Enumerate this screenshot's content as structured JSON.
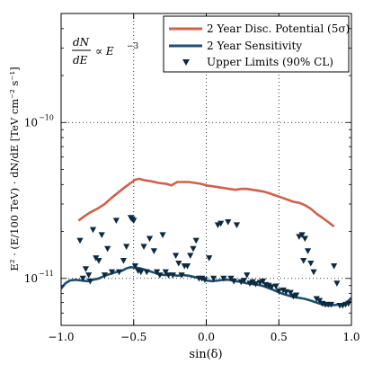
{
  "chart_data": {
    "type": "line",
    "title": "",
    "annotation_formula": {
      "lhs_num": "dN",
      "lhs_den": "dE",
      "rhs": "∝ E",
      "exponent": "−3"
    },
    "xlabel": "sin(δ)",
    "ylabel": "E² · (E/100 TeV) · dN/dE  [TeV cm⁻² s⁻¹]",
    "xlim": [
      -1.0,
      1.0
    ],
    "ylim": [
      5e-12,
      5e-10
    ],
    "yscale": "log",
    "grid": true,
    "grid_style": "dotted",
    "legend_placement": "top-right",
    "x_ticks": [
      {
        "value": -1.0,
        "label": "−1.0"
      },
      {
        "value": -0.5,
        "label": "−0.5"
      },
      {
        "value": 0.0,
        "label": "0.0"
      },
      {
        "value": 0.5,
        "label": "0.5"
      },
      {
        "value": 1.0,
        "label": "1.0"
      }
    ],
    "y_ticks": [
      {
        "value": 1e-11,
        "base": "10",
        "exp": "−11"
      },
      {
        "value": 1e-10,
        "base": "10",
        "exp": "−10"
      }
    ],
    "series": [
      {
        "name": "2 Year Disc. Potential (5σ)",
        "kind": "line",
        "color": "#d0604c",
        "x": [
          -0.88,
          -0.84,
          -0.8,
          -0.75,
          -0.7,
          -0.65,
          -0.6,
          -0.56,
          -0.52,
          -0.49,
          -0.46,
          -0.42,
          -0.38,
          -0.33,
          -0.28,
          -0.24,
          -0.2,
          -0.16,
          -0.12,
          -0.08,
          -0.04,
          0.0,
          0.04,
          0.08,
          0.12,
          0.16,
          0.2,
          0.24,
          0.28,
          0.32,
          0.36,
          0.4,
          0.44,
          0.48,
          0.52,
          0.56,
          0.6,
          0.64,
          0.68,
          0.72,
          0.76,
          0.8,
          0.84,
          0.88
        ],
        "values": [
          2.35e-11,
          2.5e-11,
          2.65e-11,
          2.8e-11,
          3e-11,
          3.3e-11,
          3.6e-11,
          3.85e-11,
          4.1e-11,
          4.3e-11,
          4.35e-11,
          4.25e-11,
          4.2e-11,
          4.1e-11,
          4.05e-11,
          3.95e-11,
          4.15e-11,
          4.15e-11,
          4.15e-11,
          4.1e-11,
          4.05e-11,
          3.95e-11,
          3.9e-11,
          3.85e-11,
          3.8e-11,
          3.75e-11,
          3.7e-11,
          3.75e-11,
          3.75e-11,
          3.7e-11,
          3.65e-11,
          3.6e-11,
          3.5e-11,
          3.4e-11,
          3.3e-11,
          3.2e-11,
          3.1e-11,
          3.05e-11,
          2.95e-11,
          2.8e-11,
          2.6e-11,
          2.45e-11,
          2.3e-11,
          2.15e-11
        ]
      },
      {
        "name": "2 Year Sensitivity",
        "kind": "line",
        "color": "#1f4e6e",
        "x": [
          -1.0,
          -0.97,
          -0.94,
          -0.9,
          -0.86,
          -0.82,
          -0.78,
          -0.74,
          -0.7,
          -0.66,
          -0.62,
          -0.58,
          -0.55,
          -0.52,
          -0.48,
          -0.44,
          -0.4,
          -0.36,
          -0.32,
          -0.28,
          -0.24,
          -0.2,
          -0.16,
          -0.12,
          -0.08,
          -0.04,
          0.0,
          0.04,
          0.08,
          0.12,
          0.16,
          0.2,
          0.24,
          0.28,
          0.32,
          0.36,
          0.4,
          0.44,
          0.48,
          0.52,
          0.56,
          0.6,
          0.64,
          0.68,
          0.72,
          0.76,
          0.8,
          0.84,
          0.88,
          0.92,
          0.96,
          1.0
        ],
        "values": [
          8.6e-12,
          9.3e-12,
          9.7e-12,
          9.8e-12,
          9.7e-12,
          9.6e-12,
          9.8e-12,
          1e-11,
          1.04e-11,
          1.07e-11,
          1.1e-11,
          1.12e-11,
          1.16e-11,
          1.18e-11,
          1.17e-11,
          1.15e-11,
          1.12e-11,
          1.09e-11,
          1.06e-11,
          1.05e-11,
          1.06e-11,
          1.04e-11,
          1.05e-11,
          1.04e-11,
          1.02e-11,
          1e-11,
          9.7e-12,
          9.6e-12,
          9.7e-12,
          9.8e-12,
          9.8e-12,
          9.6e-12,
          9.5e-12,
          9.3e-12,
          9.2e-12,
          9.1e-12,
          8.9e-12,
          8.6e-12,
          8.3e-12,
          8e-12,
          7.8e-12,
          7.6e-12,
          7.5e-12,
          7.4e-12,
          7.2e-12,
          7e-12,
          6.8e-12,
          6.7e-12,
          6.75e-12,
          6.8e-12,
          6.9e-12,
          7.5e-12
        ]
      },
      {
        "name": "Upper Limits (90% CL)",
        "kind": "scatter",
        "marker": "triangle-down",
        "color": "#0d2b3e",
        "x": [
          -0.87,
          -0.85,
          -0.83,
          -0.81,
          -0.8,
          -0.78,
          -0.76,
          -0.74,
          -0.72,
          -0.7,
          -0.68,
          -0.65,
          -0.62,
          -0.6,
          -0.57,
          -0.55,
          -0.52,
          -0.51,
          -0.5,
          -0.49,
          -0.47,
          -0.45,
          -0.43,
          -0.41,
          -0.39,
          -0.36,
          -0.34,
          -0.32,
          -0.3,
          -0.28,
          -0.26,
          -0.23,
          -0.21,
          -0.19,
          -0.17,
          -0.15,
          -0.13,
          -0.11,
          -0.09,
          -0.07,
          -0.05,
          -0.03,
          -0.01,
          0.02,
          0.05,
          0.08,
          0.1,
          0.12,
          0.15,
          0.17,
          0.19,
          0.21,
          0.24,
          0.26,
          0.28,
          0.3,
          0.32,
          0.34,
          0.37,
          0.39,
          0.41,
          0.43,
          0.45,
          0.48,
          0.5,
          0.53,
          0.55,
          0.58,
          0.6,
          0.62,
          0.64,
          0.66,
          0.67,
          0.68,
          0.7,
          0.72,
          0.74,
          0.76,
          0.78,
          0.8,
          0.82,
          0.84,
          0.86,
          0.88,
          0.9,
          0.92,
          0.94,
          0.96,
          0.98
        ],
        "values": [
          1.75e-11,
          1e-11,
          1.15e-11,
          1.05e-11,
          9.6e-12,
          2.05e-11,
          1.35e-11,
          1.3e-11,
          1.9e-11,
          1.05e-11,
          1.55e-11,
          1.1e-11,
          2.35e-11,
          1.1e-11,
          1.3e-11,
          1.6e-11,
          2.45e-11,
          2.4e-11,
          2.35e-11,
          1.2e-11,
          1.12e-11,
          1.1e-11,
          1.6e-11,
          1.1e-11,
          1.8e-11,
          1.5e-11,
          1.1e-11,
          1.05e-11,
          1.9e-11,
          1.1e-11,
          1.05e-11,
          1.05e-11,
          1.4e-11,
          1.25e-11,
          1.05e-11,
          1.2e-11,
          1.2e-11,
          1.4e-11,
          1.55e-11,
          1.75e-11,
          1e-11,
          1e-11,
          9.8e-12,
          1.35e-11,
          1e-11,
          2.2e-11,
          2.25e-11,
          1e-11,
          2.3e-11,
          1e-11,
          9.6e-12,
          2.2e-11,
          9.5e-12,
          9.7e-12,
          1.05e-11,
          9.3e-12,
          9.5e-12,
          9.2e-12,
          9.4e-12,
          9.6e-12,
          9.1e-12,
          9e-12,
          8.8e-12,
          8.9e-12,
          8.3e-12,
          8.4e-12,
          8.2e-12,
          8.1e-12,
          7.7e-12,
          7.8e-12,
          1.85e-11,
          1.9e-11,
          1.3e-11,
          1.8e-11,
          1.5e-11,
          1.25e-11,
          1.1e-11,
          7.4e-12,
          7.2e-12,
          6.9e-12,
          6.8e-12,
          6.8e-12,
          6.8e-12,
          1.2e-11,
          9.3e-12,
          6.7e-12,
          6.7e-12,
          6.8e-12,
          6.9e-12
        ]
      }
    ]
  }
}
